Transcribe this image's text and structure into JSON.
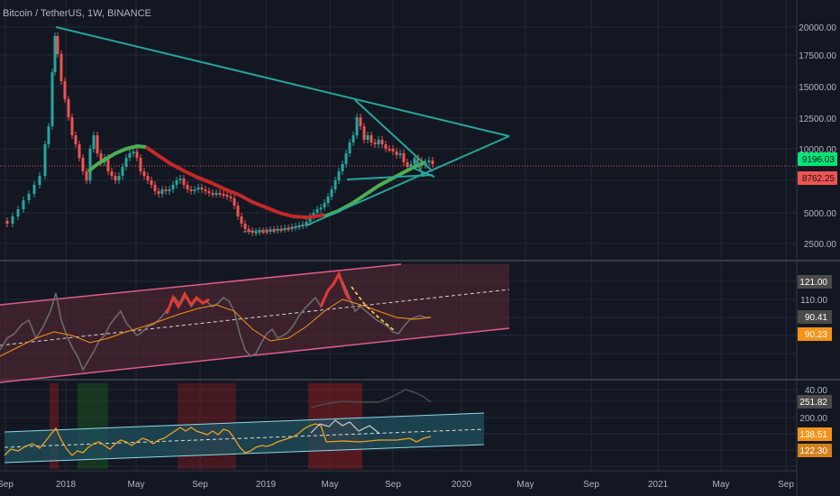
{
  "header": {
    "symbol_title": "Bitcoin / TetherUS, 1W, BINANCE"
  },
  "colors": {
    "background": "#131722",
    "grid": "#2a2e39",
    "separator": "#363a45",
    "bull": "#26a69a",
    "bear": "#ef5350",
    "trendline": "#26a69a",
    "ma_green": "#4caf50",
    "ma_red": "#c62828",
    "rsi_line": "#6b6b6b",
    "rsi_ma": "#f7931a",
    "rsi_channel_fill": "#5c2a34",
    "rsi_channel_border": "#e05c8a",
    "osc_channel_fill": "#1e4e5a",
    "osc_channel_border": "#8fd8e8",
    "osc_line": "#f0a020",
    "current_price_tag": "#00e676",
    "low_price_tag": "#ef5350"
  },
  "price_axis": {
    "ticks": [
      "20000.00",
      "17500.00",
      "15000.00",
      "12500.00",
      "10000.00",
      "5000.00",
      "2500.00"
    ],
    "current_price": "9196.03",
    "secondary_price": "8762.25"
  },
  "rsi_axis": {
    "ticks": [
      "121.00",
      "110.00",
      "90.41",
      "90.23",
      "40.00"
    ]
  },
  "osc_axis": {
    "ticks": [
      "251.82",
      "200.00",
      "138.51",
      "122.30"
    ]
  },
  "time_axis": {
    "labels": [
      "Sep",
      "2018",
      "May",
      "Sep",
      "2019",
      "May",
      "Sep",
      "2020",
      "May",
      "Sep",
      "2021",
      "May",
      "Sep"
    ]
  }
}
